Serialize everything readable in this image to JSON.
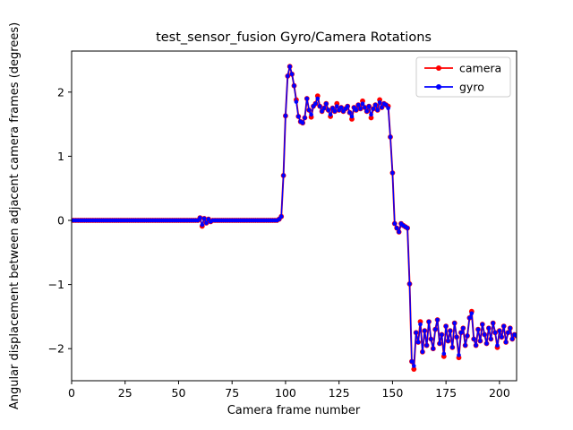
{
  "figure": {
    "background": "#ffffff",
    "plot_border_color": "#000000",
    "legend_border_color": "#cccccc"
  },
  "chart_data": {
    "type": "line",
    "title": "test_sensor_fusion Gyro/Camera Rotations",
    "xlabel": "Camera frame number",
    "ylabel": "Angular displacement between adjacent camera frames (degrees)",
    "xlim": [
      0,
      208
    ],
    "ylim": [
      -2.5,
      2.64
    ],
    "xticks": [
      0,
      25,
      50,
      75,
      100,
      125,
      150,
      175,
      200
    ],
    "yticks": [
      -2,
      -1,
      0,
      1,
      2
    ],
    "grid": false,
    "legend": {
      "position": "upper right",
      "entries": [
        {
          "label": "camera",
          "color": "#ff0000",
          "marker": "circle"
        },
        {
          "label": "gyro",
          "color": "#0000ff",
          "marker": "circle"
        }
      ]
    },
    "x_start": 0,
    "x_step": 1,
    "series": [
      {
        "name": "camera",
        "color": "#ff0000",
        "values": [
          0,
          0,
          0,
          0,
          0,
          0,
          0,
          0,
          0,
          0,
          0,
          0,
          0,
          0,
          0,
          0,
          0,
          0,
          0,
          0,
          0,
          0,
          0,
          0,
          0,
          0,
          0,
          0,
          0,
          0,
          0,
          0,
          0,
          0,
          0,
          0,
          0,
          0,
          0,
          0,
          0,
          0,
          0,
          0,
          0,
          0,
          0,
          0,
          0,
          0,
          0,
          0,
          0,
          0,
          0,
          0,
          0,
          0,
          0,
          0,
          0.04,
          -0.09,
          0.03,
          -0.04,
          0.02,
          -0.02,
          0,
          0,
          0,
          0,
          0,
          0,
          0,
          0,
          0,
          0,
          0,
          0,
          0,
          0,
          0,
          0,
          0,
          0,
          0,
          0,
          0,
          0,
          0,
          0,
          0,
          0,
          0,
          0,
          0,
          0,
          0,
          0.02,
          0.06,
          0.7,
          1.63,
          2.25,
          2.4,
          2.28,
          2.1,
          1.88,
          1.62,
          1.54,
          1.52,
          1.6,
          1.9,
          1.72,
          1.61,
          1.78,
          1.82,
          1.94,
          1.78,
          1.7,
          1.75,
          1.82,
          1.72,
          1.62,
          1.75,
          1.7,
          1.82,
          1.72,
          1.76,
          1.7,
          1.74,
          1.78,
          1.68,
          1.58,
          1.76,
          1.72,
          1.8,
          1.74,
          1.86,
          1.76,
          1.7,
          1.78,
          1.6,
          1.74,
          1.8,
          1.72,
          1.88,
          1.76,
          1.82,
          1.8,
          1.78,
          1.3,
          0.74,
          -0.05,
          -0.12,
          -0.18,
          -0.05,
          -0.08,
          -0.1,
          -0.12,
          -0.99,
          -2.2,
          -2.32,
          -1.75,
          -1.9,
          -1.58,
          -2.05,
          -1.72,
          -1.95,
          -1.58,
          -1.85,
          -2.0,
          -1.7,
          -1.55,
          -1.92,
          -1.78,
          -2.12,
          -1.65,
          -1.88,
          -1.72,
          -1.98,
          -1.6,
          -1.82,
          -2.14,
          -1.75,
          -1.68,
          -1.95,
          -1.8,
          -1.52,
          -1.42,
          -1.85,
          -1.95,
          -1.7,
          -1.88,
          -1.62,
          -1.78,
          -1.92,
          -1.68,
          -1.85,
          -1.6,
          -1.75,
          -1.98,
          -1.72,
          -1.82,
          -1.65,
          -1.9,
          -1.75,
          -1.68,
          -1.85,
          -1.78,
          -1.8
        ]
      },
      {
        "name": "gyro",
        "color": "#0000ff",
        "values": [
          0,
          0,
          0,
          0,
          0,
          0,
          0,
          0,
          0,
          0,
          0,
          0,
          0,
          0,
          0,
          0,
          0,
          0,
          0,
          0,
          0,
          0,
          0,
          0,
          0,
          0,
          0,
          0,
          0,
          0,
          0,
          0,
          0,
          0,
          0,
          0,
          0,
          0,
          0,
          0,
          0,
          0,
          0,
          0,
          0,
          0,
          0,
          0,
          0,
          0,
          0,
          0,
          0,
          0,
          0,
          0,
          0,
          0,
          0,
          0,
          0.04,
          -0.07,
          0.03,
          -0.04,
          0.02,
          -0.02,
          0,
          0,
          0,
          0,
          0,
          0,
          0,
          0,
          0,
          0,
          0,
          0,
          0,
          0,
          0,
          0,
          0,
          0,
          0,
          0,
          0,
          0,
          0,
          0,
          0,
          0,
          0,
          0,
          0,
          0,
          0,
          0.02,
          0.06,
          0.7,
          1.63,
          2.25,
          2.4,
          2.28,
          2.1,
          1.85,
          1.62,
          1.54,
          1.52,
          1.6,
          1.9,
          1.72,
          1.65,
          1.78,
          1.82,
          1.9,
          1.78,
          1.7,
          1.75,
          1.82,
          1.72,
          1.65,
          1.75,
          1.7,
          1.78,
          1.72,
          1.76,
          1.7,
          1.74,
          1.78,
          1.68,
          1.62,
          1.76,
          1.72,
          1.8,
          1.74,
          1.82,
          1.76,
          1.7,
          1.78,
          1.65,
          1.74,
          1.8,
          1.72,
          1.84,
          1.76,
          1.82,
          1.8,
          1.75,
          1.3,
          0.74,
          -0.05,
          -0.12,
          -0.18,
          -0.05,
          -0.08,
          -0.1,
          -0.12,
          -0.99,
          -2.2,
          -2.27,
          -1.75,
          -1.9,
          -1.62,
          -2.05,
          -1.72,
          -1.95,
          -1.58,
          -1.85,
          -2.0,
          -1.7,
          -1.55,
          -1.92,
          -1.78,
          -2.08,
          -1.65,
          -1.88,
          -1.72,
          -1.98,
          -1.6,
          -1.82,
          -2.1,
          -1.75,
          -1.68,
          -1.95,
          -1.8,
          -1.52,
          -1.45,
          -1.85,
          -1.95,
          -1.7,
          -1.88,
          -1.62,
          -1.78,
          -1.92,
          -1.68,
          -1.85,
          -1.6,
          -1.75,
          -1.95,
          -1.72,
          -1.82,
          -1.65,
          -1.9,
          -1.75,
          -1.68,
          -1.85,
          -1.78,
          -1.8
        ]
      }
    ]
  }
}
